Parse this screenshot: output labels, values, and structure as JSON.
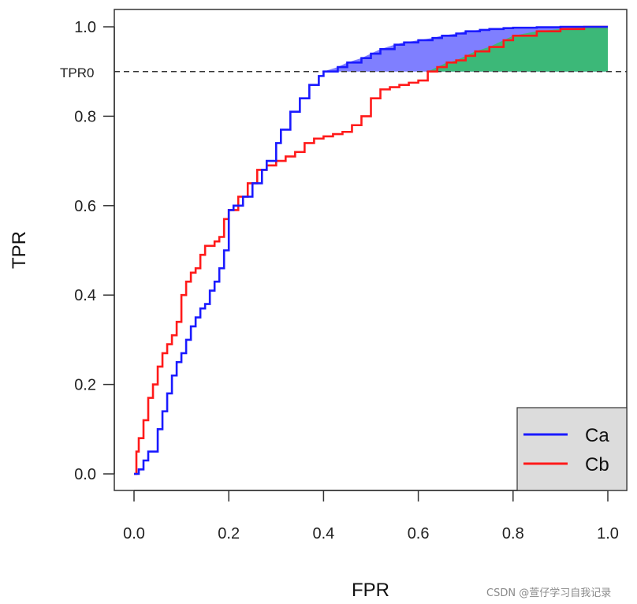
{
  "chart_data": {
    "type": "line",
    "xlabel": "FPR",
    "ylabel": "TPR",
    "xlim": [
      0,
      1
    ],
    "ylim": [
      0,
      1
    ],
    "x_ticks": [
      "0.0",
      "0.2",
      "0.4",
      "0.6",
      "0.8",
      "1.0"
    ],
    "y_ticks": [
      "0.0",
      "0.2",
      "0.4",
      "0.6",
      "0.8",
      "1.0"
    ],
    "grid": false,
    "legend_position": "bottom-right",
    "reference_line": {
      "label": "TPR0",
      "y": 0.9,
      "style": "dashed"
    },
    "shaded_regions": [
      {
        "description": "between Ca and Cb above TPR0",
        "color": "#7f7fff"
      },
      {
        "description": "below Cb above TPR0",
        "color": "#3cb878"
      }
    ],
    "series": [
      {
        "name": "Ca",
        "color": "#1a1aff",
        "x": [
          0.0,
          0.01,
          0.02,
          0.03,
          0.05,
          0.06,
          0.07,
          0.08,
          0.09,
          0.1,
          0.11,
          0.12,
          0.13,
          0.14,
          0.15,
          0.16,
          0.17,
          0.18,
          0.19,
          0.2,
          0.21,
          0.23,
          0.25,
          0.27,
          0.28,
          0.3,
          0.31,
          0.33,
          0.35,
          0.37,
          0.39,
          0.4,
          0.43,
          0.45,
          0.48,
          0.5,
          0.52,
          0.55,
          0.57,
          0.6,
          0.63,
          0.65,
          0.68,
          0.7,
          0.73,
          0.75,
          0.78,
          0.8,
          0.85,
          0.9,
          0.95,
          1.0
        ],
        "y": [
          0.0,
          0.01,
          0.03,
          0.05,
          0.1,
          0.14,
          0.18,
          0.22,
          0.25,
          0.27,
          0.3,
          0.33,
          0.35,
          0.37,
          0.38,
          0.41,
          0.43,
          0.46,
          0.5,
          0.59,
          0.6,
          0.62,
          0.65,
          0.68,
          0.7,
          0.74,
          0.77,
          0.81,
          0.84,
          0.87,
          0.89,
          0.9,
          0.91,
          0.92,
          0.93,
          0.94,
          0.95,
          0.96,
          0.965,
          0.97,
          0.975,
          0.98,
          0.985,
          0.99,
          0.993,
          0.995,
          0.997,
          0.998,
          0.999,
          1.0,
          1.0,
          1.0
        ]
      },
      {
        "name": "Cb",
        "color": "#ff1a1a",
        "x": [
          0.0,
          0.005,
          0.01,
          0.02,
          0.03,
          0.04,
          0.05,
          0.06,
          0.07,
          0.08,
          0.09,
          0.1,
          0.11,
          0.12,
          0.13,
          0.14,
          0.15,
          0.17,
          0.18,
          0.19,
          0.2,
          0.22,
          0.24,
          0.26,
          0.28,
          0.3,
          0.32,
          0.34,
          0.36,
          0.38,
          0.4,
          0.42,
          0.44,
          0.46,
          0.48,
          0.5,
          0.52,
          0.54,
          0.56,
          0.58,
          0.6,
          0.62,
          0.64,
          0.66,
          0.68,
          0.7,
          0.72,
          0.75,
          0.78,
          0.8,
          0.85,
          0.9,
          0.95,
          1.0
        ],
        "y": [
          0.0,
          0.05,
          0.08,
          0.12,
          0.17,
          0.2,
          0.24,
          0.27,
          0.29,
          0.31,
          0.34,
          0.4,
          0.43,
          0.45,
          0.46,
          0.49,
          0.51,
          0.52,
          0.53,
          0.57,
          0.59,
          0.62,
          0.65,
          0.68,
          0.69,
          0.7,
          0.71,
          0.72,
          0.74,
          0.75,
          0.755,
          0.76,
          0.765,
          0.78,
          0.8,
          0.84,
          0.86,
          0.865,
          0.87,
          0.875,
          0.88,
          0.9,
          0.91,
          0.92,
          0.925,
          0.935,
          0.945,
          0.955,
          0.97,
          0.98,
          0.99,
          0.995,
          1.0,
          1.0
        ]
      }
    ]
  },
  "watermark": "CSDN @萱仔学习自我记录"
}
